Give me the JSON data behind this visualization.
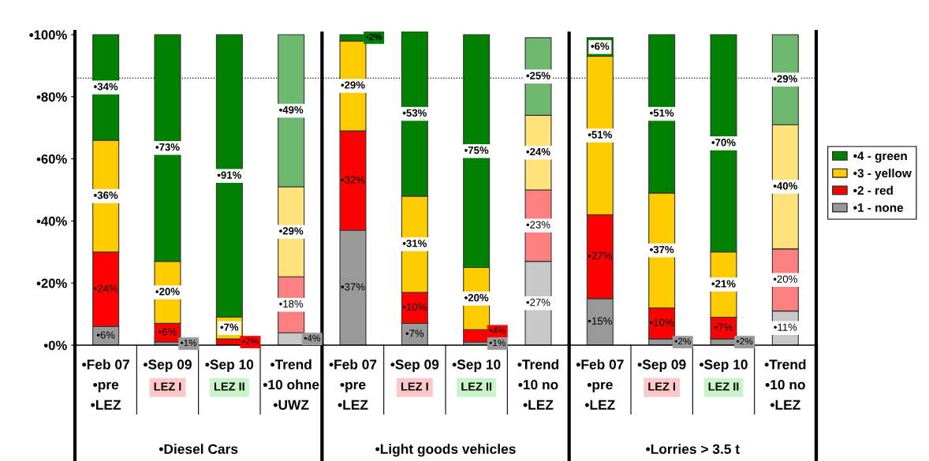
{
  "chart_data": {
    "type": "bar",
    "stacked": true,
    "categories": [
      "•Feb 07\n•pre\n•LEZ",
      "•Sep 09",
      "•Sep 10",
      "•Trend\n•10 ohne\n•UWZ",
      "•Feb 07\n•pre\n•LEZ",
      "•Sep 09",
      "•Sep 10",
      "•Trend\n•10 no\n•LEZ",
      "•Feb 07\n•pre\n•LEZ",
      "•Sep 09",
      "•Sep 10",
      "•Trend\n•10 no\n•LEZ"
    ],
    "series": [
      {
        "name": "•1 - none",
        "color": "#999999",
        "colors": [
          "#999999",
          "#999999",
          "#999999",
          "#c8c8c8",
          "#999999",
          "#999999",
          "#999999",
          "#c8c8c8",
          "#999999",
          "#999999",
          "#999999",
          "#c8c8c8"
        ],
        "values": [
          6,
          1,
          0,
          4,
          37,
          7,
          1,
          27,
          15,
          2,
          2,
          11
        ],
        "value_labels": [
          "•6%",
          "•1%",
          null,
          "•4%",
          "•37%",
          "•7%",
          "•1%",
          "•27%",
          "•15%",
          "•2%",
          "•2%",
          "•11%"
        ]
      },
      {
        "name": "•2 - red",
        "color": "#ff0000",
        "colors": [
          "#ff0000",
          "#ff0000",
          "#ff0000",
          "#ff8080",
          "#ff0000",
          "#ff0000",
          "#ff0000",
          "#ff8080",
          "#ff0000",
          "#ff0000",
          "#ff0000",
          "#ff8080"
        ],
        "values": [
          24,
          6,
          2,
          18,
          32,
          10,
          4,
          23,
          27,
          10,
          7,
          20
        ],
        "value_labels": [
          "•24%",
          "•6%",
          "•2%",
          "•18%",
          "•32%",
          "•10%",
          "•4%",
          "•23%",
          "•27%",
          "•10%",
          "•7%",
          "•20%"
        ]
      },
      {
        "name": "•3 - yellow",
        "color": "#ffcc00",
        "colors": [
          "#ffcc00",
          "#ffcc00",
          "#ffcc00",
          "#ffe27a",
          "#ffcc00",
          "#ffcc00",
          "#ffcc00",
          "#ffe27a",
          "#ffcc00",
          "#ffcc00",
          "#ffcc00",
          "#ffe27a"
        ],
        "values": [
          36,
          20,
          7,
          29,
          29,
          31,
          20,
          24,
          51,
          37,
          21,
          40
        ],
        "value_labels": [
          "•36%",
          "•20%",
          "•7%",
          "•29%",
          "•29%",
          "•31%",
          "•20%",
          "•24%",
          "•51%",
          "•37%",
          "•21%",
          "•40%"
        ]
      },
      {
        "name": "•4 - green",
        "color": "#008000",
        "colors": [
          "#008000",
          "#008000",
          "#008000",
          "#6fb86f",
          "#008000",
          "#008000",
          "#008000",
          "#6fb86f",
          "#008000",
          "#008000",
          "#008000",
          "#6fb86f"
        ],
        "values": [
          34,
          73,
          91,
          49,
          2,
          53,
          75,
          25,
          6,
          51,
          70,
          29
        ],
        "value_labels": [
          "•34%",
          "•73%",
          "•91%",
          "•49%",
          "•2%",
          "•53%",
          "•75%",
          "•25%",
          "•6%",
          "•51%",
          "•70%",
          "•29%"
        ]
      }
    ],
    "ylim": [
      0,
      101
    ],
    "yticks": [
      {
        "value": 0,
        "label": "•0%"
      },
      {
        "value": 20,
        "label": "•20%"
      },
      {
        "value": 40,
        "label": "•40%"
      },
      {
        "value": 60,
        "label": "•60%"
      },
      {
        "value": 80,
        "label": "•80%"
      },
      {
        "value": 100,
        "label": "•100%"
      }
    ],
    "ref_lines": [
      {
        "axis": "y",
        "value": 86,
        "line_style": "dotted",
        "color": "#000000"
      }
    ],
    "annotations": [
      "LEZ I",
      "LEZ II",
      "•Diesel Cars",
      "LEZ I",
      "LEZ II",
      "•Light goods vehicles",
      "LEZ I",
      "LEZ II",
      "•Lorries > 3.5 t"
    ],
    "legend": "right",
    "grid": false
  }
}
